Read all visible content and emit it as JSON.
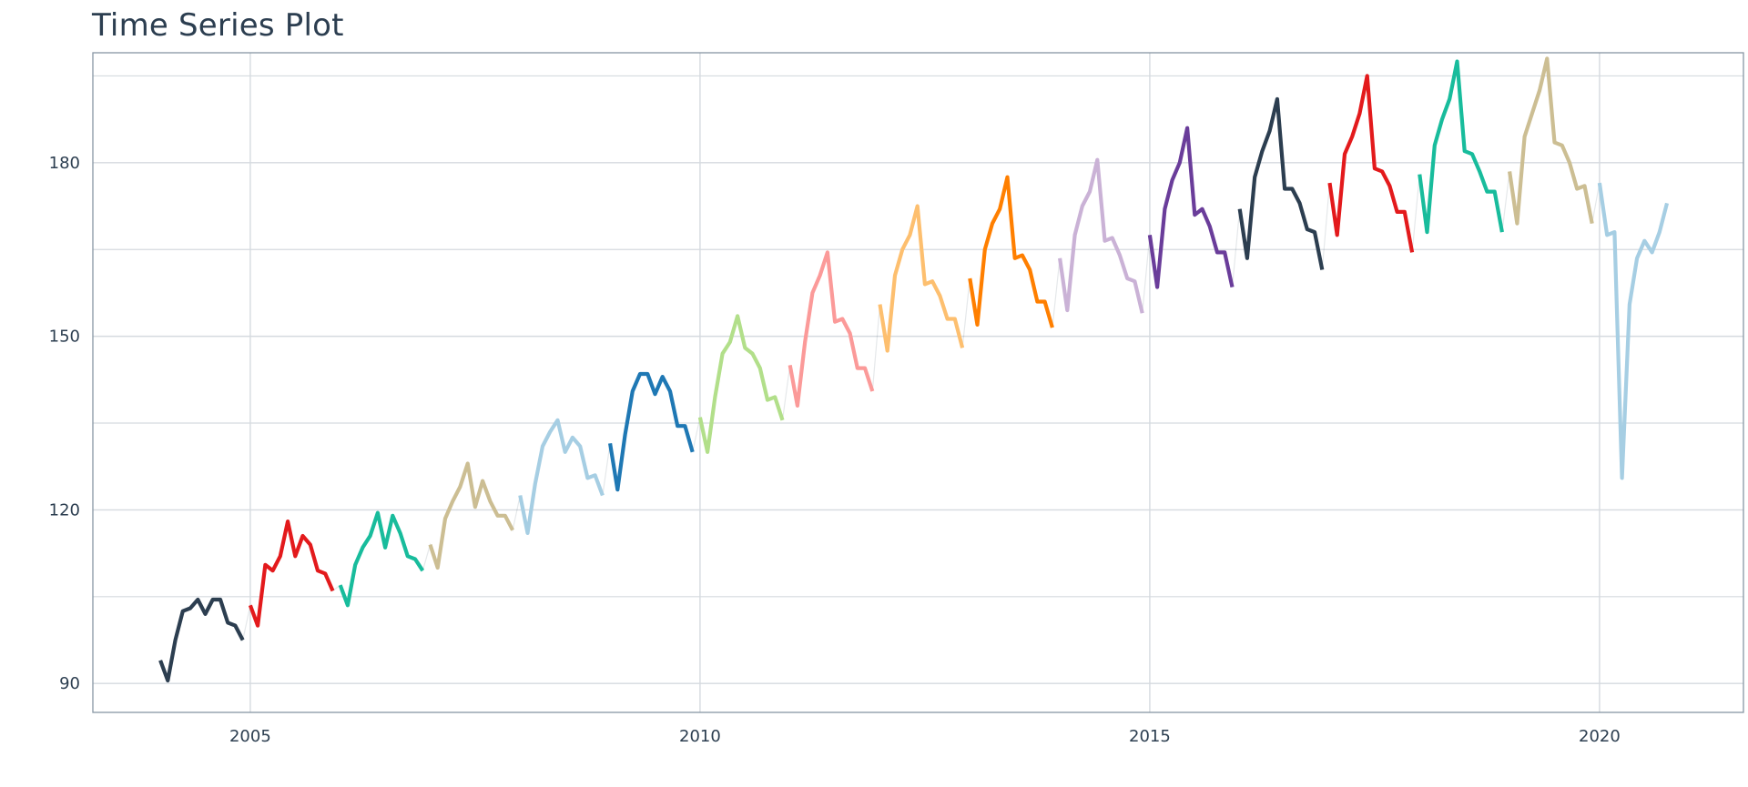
{
  "chart_data": {
    "type": "line",
    "title": "Time Series Plot",
    "xlabel": "",
    "ylabel": "",
    "xlim": [
      2003.25,
      2021.6
    ],
    "ylim": [
      85,
      199
    ],
    "x_ticks": [
      2005,
      2010,
      2015,
      2020
    ],
    "x_tick_labels": [
      "2005",
      "2010",
      "2015",
      "2020"
    ],
    "y_ticks": [
      90,
      120,
      150,
      180
    ],
    "y_tick_labels": [
      "90",
      "120",
      "150",
      "180"
    ],
    "y_minor_ticks": [
      105,
      135,
      165,
      195
    ],
    "grid": true,
    "legend": "none",
    "colors": {
      "axis": "#8796a3",
      "grid": "#d5dadf",
      "text": "#2c3e50",
      "palette": [
        "#2c3e50",
        "#e31a1c",
        "#18bc9c",
        "#ccbe93",
        "#a6cee3",
        "#1f78b4",
        "#b2df8a",
        "#fb9a99",
        "#fdbf6f",
        "#ff7f00",
        "#cab2d6",
        "#6a3d9a"
      ]
    },
    "series": [
      {
        "year": 2004,
        "color": "#2c3e50",
        "values": [
          94.0,
          90.5,
          97.5,
          102.5,
          103.0,
          104.5,
          102.0,
          104.5,
          104.5,
          100.5,
          100.0,
          97.5
        ]
      },
      {
        "year": 2005,
        "color": "#e31a1c",
        "values": [
          103.5,
          100.0,
          110.5,
          109.5,
          112.0,
          118.0,
          112.0,
          115.5,
          114.0,
          109.5,
          109.0,
          106.0
        ]
      },
      {
        "year": 2006,
        "color": "#18bc9c",
        "values": [
          107.0,
          103.5,
          110.5,
          113.5,
          115.5,
          119.5,
          113.5,
          119.0,
          116.0,
          112.0,
          111.5,
          109.5
        ]
      },
      {
        "year": 2007,
        "color": "#ccbe93",
        "values": [
          114.0,
          110.0,
          118.5,
          121.5,
          124.0,
          128.0,
          120.5,
          125.0,
          121.5,
          119.0,
          119.0,
          116.5
        ]
      },
      {
        "year": 2008,
        "color": "#a6cee3",
        "values": [
          122.5,
          116.0,
          124.5,
          131.0,
          133.5,
          135.5,
          130.0,
          132.5,
          131.0,
          125.5,
          126.0,
          122.5
        ]
      },
      {
        "year": 2009,
        "color": "#1f78b4",
        "values": [
          131.5,
          123.5,
          133.0,
          140.5,
          143.5,
          143.5,
          140.0,
          143.0,
          140.5,
          134.5,
          134.5,
          130.0
        ]
      },
      {
        "year": 2010,
        "color": "#b2df8a",
        "values": [
          136.0,
          130.0,
          139.5,
          147.0,
          149.0,
          153.5,
          148.0,
          147.0,
          144.5,
          139.0,
          139.5,
          135.5
        ]
      },
      {
        "year": 2011,
        "color": "#fb9a99",
        "values": [
          145.0,
          138.0,
          149.0,
          157.5,
          160.5,
          164.5,
          152.5,
          153.0,
          150.5,
          144.5,
          144.5,
          140.5
        ]
      },
      {
        "year": 2012,
        "color": "#fdbf6f",
        "values": [
          155.5,
          147.5,
          160.5,
          165.0,
          167.5,
          172.5,
          159.0,
          159.5,
          157.0,
          153.0,
          153.0,
          148.0
        ]
      },
      {
        "year": 2013,
        "color": "#ff7f00",
        "values": [
          160.0,
          152.0,
          165.0,
          169.5,
          172.0,
          177.5,
          163.5,
          164.0,
          161.5,
          156.0,
          156.0,
          151.5
        ]
      },
      {
        "year": 2014,
        "color": "#cab2d6",
        "values": [
          163.5,
          154.5,
          167.5,
          172.5,
          175.0,
          180.5,
          166.5,
          167.0,
          164.0,
          160.0,
          159.5,
          154.0
        ]
      },
      {
        "year": 2015,
        "color": "#6a3d9a",
        "values": [
          167.5,
          158.5,
          172.0,
          177.0,
          180.0,
          186.0,
          171.0,
          172.0,
          169.0,
          164.5,
          164.5,
          158.5
        ]
      },
      {
        "year": 2016,
        "color": "#2c3e50",
        "values": [
          172.0,
          163.5,
          177.5,
          182.0,
          185.5,
          191.0,
          175.5,
          175.5,
          173.0,
          168.5,
          168.0,
          161.5
        ]
      },
      {
        "year": 2017,
        "color": "#e31a1c",
        "values": [
          176.5,
          167.5,
          181.5,
          184.5,
          188.5,
          195.0,
          179.0,
          178.5,
          176.0,
          171.5,
          171.5,
          164.5
        ]
      },
      {
        "year": 2018,
        "color": "#18bc9c",
        "values": [
          178.0,
          168.0,
          183.0,
          187.5,
          191.0,
          197.5,
          182.0,
          181.5,
          178.5,
          175.0,
          175.0,
          168.0
        ]
      },
      {
        "year": 2019,
        "color": "#ccbe93",
        "values": [
          178.5,
          169.5,
          184.5,
          188.5,
          192.5,
          198.0,
          183.5,
          183.0,
          180.0,
          175.5,
          176.0,
          169.5
        ]
      },
      {
        "year": 2020,
        "color": "#a6cee3",
        "values": [
          176.5,
          167.5,
          168.0,
          125.5,
          155.5,
          163.5,
          166.5,
          164.5,
          168.0,
          173.0
        ]
      }
    ]
  }
}
